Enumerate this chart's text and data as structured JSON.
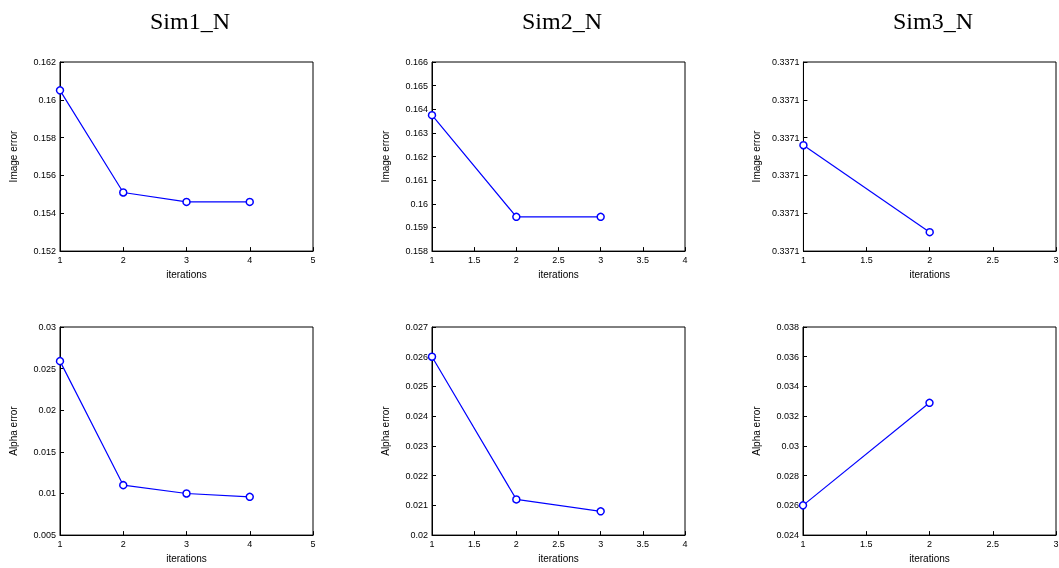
{
  "chart_data": [
    {
      "type": "line",
      "title": "Sim1_N",
      "xlabel": "iterations",
      "ylabel": "Image error",
      "x": [
        1,
        2,
        3,
        4
      ],
      "marker": "circle",
      "line_style": "solid",
      "xlim": [
        1,
        5
      ],
      "xticks": [
        1,
        2,
        3,
        4,
        5
      ],
      "ylim": [
        0.152,
        0.162
      ],
      "yticks": [
        0.152,
        0.154,
        0.156,
        0.158,
        0.16,
        0.162
      ],
      "series": [
        {
          "color": "#0000ff",
          "values": [
            0.1605,
            0.1551,
            0.1546,
            0.1546
          ]
        }
      ]
    },
    {
      "type": "line",
      "title": "Sim2_N",
      "xlabel": "iterations",
      "ylabel": "Image error",
      "x": [
        1,
        2,
        3
      ],
      "marker": "circle",
      "line_style": "solid",
      "xlim": [
        1,
        4
      ],
      "xticks": [
        1,
        1.5,
        2,
        2.5,
        3,
        3.5,
        4
      ],
      "ylim": [
        0.158,
        0.166
      ],
      "yticks": [
        0.158,
        0.159,
        0.16,
        0.161,
        0.162,
        0.163,
        0.164,
        0.165,
        0.166
      ],
      "series": [
        {
          "color": "#0000ff",
          "values": [
            0.16375,
            0.15945,
            0.15945
          ]
        }
      ]
    },
    {
      "type": "line",
      "title": "Sim3_N",
      "xlabel": "iterations",
      "ylabel": "Image error",
      "x": [
        1,
        2
      ],
      "marker": "circle",
      "line_style": "solid",
      "xlim": [
        1,
        3
      ],
      "xticks": [
        1,
        1.5,
        2,
        2.5,
        3
      ],
      "ylim": [
        0.337055,
        0.337105
      ],
      "yticks": [
        {
          "value": 0.337055,
          "label": "0.3371"
        },
        {
          "value": 0.337065,
          "label": "0.3371"
        },
        {
          "value": 0.337075,
          "label": "0.3371"
        },
        {
          "value": 0.337085,
          "label": "0.3371"
        },
        {
          "value": 0.337095,
          "label": "0.3371"
        },
        {
          "value": 0.337105,
          "label": "0.3371"
        }
      ],
      "series": [
        {
          "color": "#0000ff",
          "values": [
            0.337083,
            0.33706
          ]
        }
      ]
    },
    {
      "type": "line",
      "xlabel": "iterations",
      "ylabel": "Alpha error",
      "x": [
        1,
        2,
        3,
        4
      ],
      "marker": "circle",
      "line_style": "solid",
      "xlim": [
        1,
        5
      ],
      "xticks": [
        1,
        2,
        3,
        4,
        5
      ],
      "ylim": [
        0.005,
        0.03
      ],
      "yticks": [
        0.005,
        0.01,
        0.015,
        0.02,
        0.025,
        0.03
      ],
      "series": [
        {
          "color": "#0000ff",
          "values": [
            0.0259,
            0.011,
            0.01,
            0.0096
          ]
        }
      ]
    },
    {
      "type": "line",
      "xlabel": "iterations",
      "ylabel": "Alpha error",
      "x": [
        1,
        2,
        3
      ],
      "marker": "circle",
      "line_style": "solid",
      "xlim": [
        1,
        4
      ],
      "xticks": [
        1,
        1.5,
        2,
        2.5,
        3,
        3.5,
        4
      ],
      "ylim": [
        0.02,
        0.027
      ],
      "yticks": [
        0.02,
        0.021,
        0.022,
        0.023,
        0.024,
        0.025,
        0.026,
        0.027
      ],
      "series": [
        {
          "color": "#0000ff",
          "values": [
            0.026,
            0.0212,
            0.0208
          ]
        }
      ]
    },
    {
      "type": "line",
      "xlabel": "iterations",
      "ylabel": "Alpha error",
      "x": [
        1,
        2
      ],
      "marker": "circle",
      "line_style": "solid",
      "xlim": [
        1,
        3
      ],
      "xticks": [
        1,
        1.5,
        2,
        2.5,
        3
      ],
      "ylim": [
        0.024,
        0.038
      ],
      "yticks": [
        0.024,
        0.026,
        0.028,
        0.03,
        0.032,
        0.034,
        0.036,
        0.038
      ],
      "series": [
        {
          "color": "#0000ff",
          "values": [
            0.026,
            0.0329
          ]
        }
      ]
    }
  ]
}
